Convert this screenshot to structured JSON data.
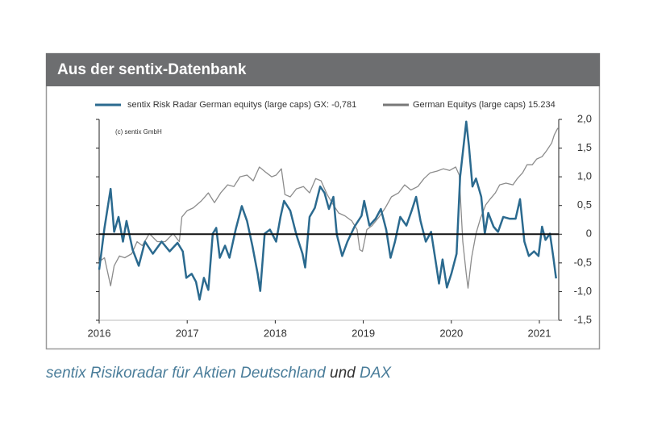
{
  "header": {
    "title": "Aus der sentix-Datenbank"
  },
  "caption": [
    "sentix Risikoradar für Aktien Deutschland",
    "und",
    "DAX"
  ],
  "chart_data": {
    "type": "line",
    "annotation": "(c) sentix GmbH",
    "xlim": [
      2016,
      2021.22
    ],
    "xticks": [
      2016,
      2017,
      2018,
      2019,
      2020,
      2021
    ],
    "ylim": [
      -1.5,
      2.0
    ],
    "yticks": [
      {
        "value": 2,
        "label": "2,0"
      },
      {
        "value": 1.5,
        "label": "1,5"
      },
      {
        "value": 1,
        "label": "1,0"
      },
      {
        "value": 0.5,
        "label": "0,5"
      },
      0,
      {
        "value": -0.5,
        "label": "-0,5"
      },
      {
        "value": -1,
        "label": "-1,0"
      },
      {
        "value": -1.5,
        "label": "-1,5"
      }
    ],
    "reference_line": 0,
    "series": [
      {
        "name": "German Equitys (large caps) 15.234",
        "color": "#8c8c8c",
        "x": [
          2016.0,
          2016.06,
          2016.13,
          2016.17,
          2016.23,
          2016.29,
          2016.37,
          2016.43,
          2016.49,
          2016.57,
          2016.66,
          2016.75,
          2016.84,
          2016.91,
          2016.94,
          2017.0,
          2017.07,
          2017.16,
          2017.24,
          2017.31,
          2017.38,
          2017.46,
          2017.53,
          2017.6,
          2017.68,
          2017.75,
          2017.82,
          2017.9,
          2017.96,
          2018.01,
          2018.07,
          2018.11,
          2018.17,
          2018.24,
          2018.32,
          2018.39,
          2018.46,
          2018.52,
          2018.59,
          2018.66,
          2018.72,
          2018.79,
          2018.87,
          2018.93,
          2018.96,
          2018.99,
          2019.04,
          2019.1,
          2019.18,
          2019.25,
          2019.32,
          2019.4,
          2019.47,
          2019.54,
          2019.62,
          2019.69,
          2019.76,
          2019.84,
          2019.91,
          2019.98,
          2020.05,
          2020.09,
          2020.13,
          2020.17,
          2020.19,
          2020.23,
          2020.28,
          2020.33,
          2020.39,
          2020.44,
          2020.5,
          2020.55,
          2020.62,
          2020.7,
          2020.75,
          2020.81,
          2020.86,
          2020.92,
          2020.97,
          2021.03,
          2021.08,
          2021.14,
          2021.17,
          2021.21
        ],
        "values": [
          -0.48,
          -0.41,
          -0.9,
          -0.55,
          -0.38,
          -0.41,
          -0.34,
          -0.13,
          -0.2,
          0.01,
          -0.13,
          -0.13,
          0.01,
          -0.13,
          0.3,
          0.41,
          0.46,
          0.58,
          0.72,
          0.55,
          0.72,
          0.86,
          0.83,
          1.0,
          1.03,
          0.93,
          1.17,
          1.07,
          1.0,
          1.03,
          1.14,
          0.69,
          0.65,
          0.79,
          0.83,
          0.72,
          0.97,
          0.93,
          0.69,
          0.51,
          0.37,
          0.32,
          0.23,
          0.08,
          -0.27,
          -0.3,
          0.08,
          0.15,
          0.3,
          0.46,
          0.65,
          0.72,
          0.86,
          0.77,
          0.83,
          0.97,
          1.07,
          1.1,
          1.14,
          1.11,
          1.17,
          1.03,
          -0.13,
          -0.69,
          -0.94,
          -0.41,
          0.01,
          0.27,
          0.51,
          0.61,
          0.72,
          0.86,
          0.89,
          0.86,
          0.97,
          1.07,
          1.21,
          1.21,
          1.31,
          1.35,
          1.45,
          1.59,
          1.73,
          1.85
        ]
      },
      {
        "name": "sentix Risk Radar German equitys (large caps) GX: -0,781",
        "color": "#2b6a8f",
        "x": [
          2016.0,
          2016.06,
          2016.13,
          2016.17,
          2016.22,
          2016.27,
          2016.31,
          2016.38,
          2016.45,
          2016.52,
          2016.61,
          2016.71,
          2016.8,
          2016.89,
          2016.95,
          2016.99,
          2017.05,
          2017.1,
          2017.14,
          2017.19,
          2017.24,
          2017.29,
          2017.33,
          2017.37,
          2017.43,
          2017.48,
          2017.55,
          2017.62,
          2017.68,
          2017.74,
          2017.8,
          2017.83,
          2017.88,
          2017.94,
          2018.01,
          2018.06,
          2018.1,
          2018.17,
          2018.24,
          2018.31,
          2018.34,
          2018.39,
          2018.45,
          2018.51,
          2018.56,
          2018.61,
          2018.66,
          2018.7,
          2018.76,
          2018.82,
          2018.9,
          2018.98,
          2019.01,
          2019.07,
          2019.14,
          2019.2,
          2019.26,
          2019.31,
          2019.36,
          2019.42,
          2019.49,
          2019.55,
          2019.6,
          2019.65,
          2019.71,
          2019.77,
          2019.83,
          2019.86,
          2019.9,
          2019.95,
          2020.0,
          2020.06,
          2020.1,
          2020.17,
          2020.2,
          2020.24,
          2020.28,
          2020.34,
          2020.38,
          2020.42,
          2020.48,
          2020.53,
          2020.59,
          2020.66,
          2020.73,
          2020.78,
          2020.83,
          2020.88,
          2020.94,
          2020.99,
          2021.03,
          2021.07,
          2021.12,
          2021.16,
          2021.19
        ],
        "values": [
          -0.62,
          0.11,
          0.79,
          0.04,
          0.3,
          -0.13,
          0.23,
          -0.27,
          -0.55,
          -0.13,
          -0.34,
          -0.13,
          -0.3,
          -0.15,
          -0.3,
          -0.76,
          -0.69,
          -0.83,
          -1.14,
          -0.76,
          -0.97,
          0.01,
          0.11,
          -0.41,
          -0.2,
          -0.41,
          0.08,
          0.49,
          0.23,
          -0.2,
          -0.69,
          -0.99,
          0.01,
          0.08,
          -0.13,
          0.3,
          0.58,
          0.41,
          -0.01,
          -0.34,
          -0.58,
          0.3,
          0.46,
          0.83,
          0.72,
          0.44,
          0.65,
          -0.01,
          -0.38,
          -0.13,
          0.13,
          0.32,
          0.58,
          0.15,
          0.27,
          0.44,
          0.08,
          -0.41,
          -0.13,
          0.3,
          0.15,
          0.41,
          0.65,
          0.23,
          -0.13,
          0.04,
          -0.55,
          -0.86,
          -0.44,
          -0.93,
          -0.69,
          -0.34,
          1.0,
          1.96,
          1.54,
          0.83,
          0.97,
          0.65,
          0.01,
          0.37,
          0.13,
          0.04,
          0.3,
          0.27,
          0.27,
          0.61,
          -0.13,
          -0.38,
          -0.3,
          -0.38,
          0.13,
          -0.1,
          0.01,
          -0.41,
          -0.77
        ]
      }
    ]
  }
}
